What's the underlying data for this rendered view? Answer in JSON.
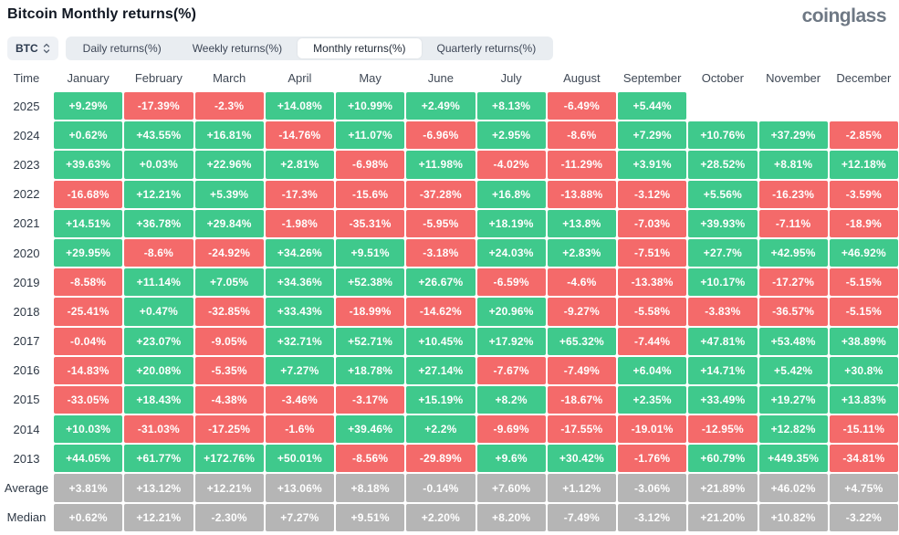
{
  "header": {
    "title": "Bitcoin Monthly returns(%)",
    "brand": "coinglass"
  },
  "controls": {
    "coin_select": {
      "value": "BTC"
    },
    "active_tab_index": 2,
    "tabs": [
      {
        "id": "daily",
        "label": "Daily returns(%)"
      },
      {
        "id": "weekly",
        "label": "Weekly returns(%)"
      },
      {
        "id": "monthly",
        "label": "Monthly returns(%)"
      },
      {
        "id": "quarterly",
        "label": "Quarterly returns(%)"
      }
    ]
  },
  "chart_data": {
    "type": "heatmap",
    "title": "Bitcoin Monthly returns(%)",
    "unit": "%",
    "legend_position": "none",
    "colors": {
      "positive": "#3fc98c",
      "negative": "#f46a6a",
      "neutral": "#b5b5b5",
      "empty": "#ffffff"
    },
    "columns": [
      "Time",
      "January",
      "February",
      "March",
      "April",
      "May",
      "June",
      "July",
      "August",
      "September",
      "October",
      "November",
      "December"
    ],
    "rows": [
      {
        "label": "2025",
        "style": "sign",
        "values": [
          "+9.29%",
          "-17.39%",
          "-2.3%",
          "+14.08%",
          "+10.99%",
          "+2.49%",
          "+8.13%",
          "-6.49%",
          "+5.44%",
          "",
          "",
          ""
        ]
      },
      {
        "label": "2024",
        "style": "sign",
        "values": [
          "+0.62%",
          "+43.55%",
          "+16.81%",
          "-14.76%",
          "+11.07%",
          "-6.96%",
          "+2.95%",
          "-8.6%",
          "+7.29%",
          "+10.76%",
          "+37.29%",
          "-2.85%"
        ]
      },
      {
        "label": "2023",
        "style": "sign",
        "values": [
          "+39.63%",
          "+0.03%",
          "+22.96%",
          "+2.81%",
          "-6.98%",
          "+11.98%",
          "-4.02%",
          "-11.29%",
          "+3.91%",
          "+28.52%",
          "+8.81%",
          "+12.18%"
        ]
      },
      {
        "label": "2022",
        "style": "sign",
        "values": [
          "-16.68%",
          "+12.21%",
          "+5.39%",
          "-17.3%",
          "-15.6%",
          "-37.28%",
          "+16.8%",
          "-13.88%",
          "-3.12%",
          "+5.56%",
          "-16.23%",
          "-3.59%"
        ]
      },
      {
        "label": "2021",
        "style": "sign",
        "values": [
          "+14.51%",
          "+36.78%",
          "+29.84%",
          "-1.98%",
          "-35.31%",
          "-5.95%",
          "+18.19%",
          "+13.8%",
          "-7.03%",
          "+39.93%",
          "-7.11%",
          "-18.9%"
        ]
      },
      {
        "label": "2020",
        "style": "sign",
        "values": [
          "+29.95%",
          "-8.6%",
          "-24.92%",
          "+34.26%",
          "+9.51%",
          "-3.18%",
          "+24.03%",
          "+2.83%",
          "-7.51%",
          "+27.7%",
          "+42.95%",
          "+46.92%"
        ]
      },
      {
        "label": "2019",
        "style": "sign",
        "values": [
          "-8.58%",
          "+11.14%",
          "+7.05%",
          "+34.36%",
          "+52.38%",
          "+26.67%",
          "-6.59%",
          "-4.6%",
          "-13.38%",
          "+10.17%",
          "-17.27%",
          "-5.15%"
        ]
      },
      {
        "label": "2018",
        "style": "sign",
        "values": [
          "-25.41%",
          "+0.47%",
          "-32.85%",
          "+33.43%",
          "-18.99%",
          "-14.62%",
          "+20.96%",
          "-9.27%",
          "-5.58%",
          "-3.83%",
          "-36.57%",
          "-5.15%"
        ]
      },
      {
        "label": "2017",
        "style": "sign",
        "values": [
          "-0.04%",
          "+23.07%",
          "-9.05%",
          "+32.71%",
          "+52.71%",
          "+10.45%",
          "+17.92%",
          "+65.32%",
          "-7.44%",
          "+47.81%",
          "+53.48%",
          "+38.89%"
        ]
      },
      {
        "label": "2016",
        "style": "sign",
        "values": [
          "-14.83%",
          "+20.08%",
          "-5.35%",
          "+7.27%",
          "+18.78%",
          "+27.14%",
          "-7.67%",
          "-7.49%",
          "+6.04%",
          "+14.71%",
          "+5.42%",
          "+30.8%"
        ]
      },
      {
        "label": "2015",
        "style": "sign",
        "values": [
          "-33.05%",
          "+18.43%",
          "-4.38%",
          "-3.46%",
          "-3.17%",
          "+15.19%",
          "+8.2%",
          "-18.67%",
          "+2.35%",
          "+33.49%",
          "+19.27%",
          "+13.83%"
        ]
      },
      {
        "label": "2014",
        "style": "sign",
        "values": [
          "+10.03%",
          "-31.03%",
          "-17.25%",
          "-1.6%",
          "+39.46%",
          "+2.2%",
          "-9.69%",
          "-17.55%",
          "-19.01%",
          "-12.95%",
          "+12.82%",
          "-15.11%"
        ]
      },
      {
        "label": "2013",
        "style": "sign",
        "values": [
          "+44.05%",
          "+61.77%",
          "+172.76%",
          "+50.01%",
          "-8.56%",
          "-29.89%",
          "+9.6%",
          "+30.42%",
          "-1.76%",
          "+60.79%",
          "+449.35%",
          "-34.81%"
        ]
      },
      {
        "label": "Average",
        "style": "neutral",
        "values": [
          "+3.81%",
          "+13.12%",
          "+12.21%",
          "+13.06%",
          "+8.18%",
          "-0.14%",
          "+7.60%",
          "+1.12%",
          "-3.06%",
          "+21.89%",
          "+46.02%",
          "+4.75%"
        ]
      },
      {
        "label": "Median",
        "style": "neutral",
        "values": [
          "+0.62%",
          "+12.21%",
          "-2.30%",
          "+7.27%",
          "+9.51%",
          "+2.20%",
          "+8.20%",
          "-7.49%",
          "-3.12%",
          "+21.20%",
          "+10.82%",
          "-3.22%"
        ]
      }
    ]
  }
}
